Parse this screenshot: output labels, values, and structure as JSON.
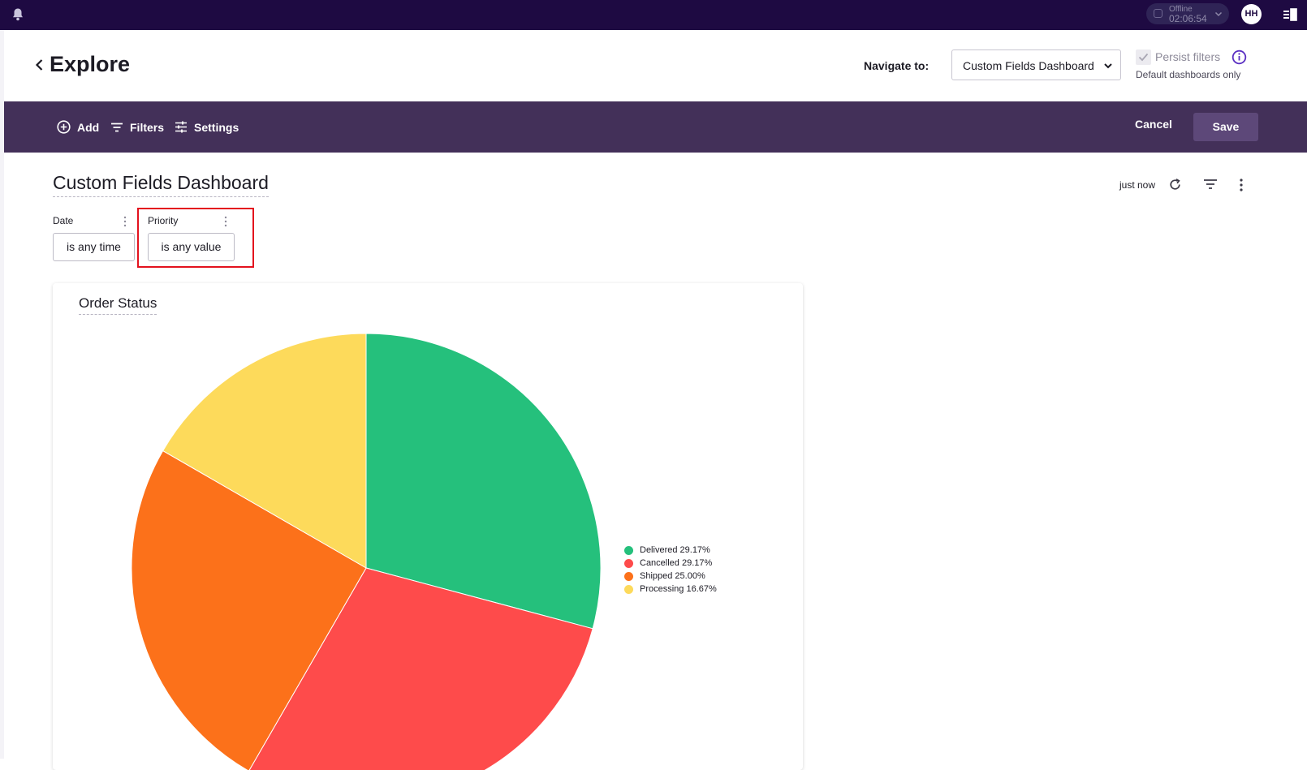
{
  "topbar": {
    "status": {
      "label": "Offline",
      "time": "02:06:54"
    },
    "avatar_initials": "HH",
    "icons": [
      "bell-icon",
      "chevron-down-icon",
      "panel-icon"
    ]
  },
  "header": {
    "title": "Explore",
    "navigate_label": "Navigate to:",
    "navigate_value": "Custom Fields Dashboard",
    "persist_label": "Persist filters",
    "persist_sub": "Default dashboards only"
  },
  "toolbar": {
    "add_label": "Add",
    "filters_label": "Filters",
    "settings_label": "Settings",
    "cancel_label": "Cancel",
    "save_label": "Save"
  },
  "dashboard": {
    "title": "Custom Fields Dashboard",
    "updated": "just now",
    "filters": [
      {
        "label": "Date",
        "value": "is any time"
      },
      {
        "label": "Priority",
        "value": "is any value"
      }
    ]
  },
  "colors": {
    "topbar": "#1e0a42",
    "toolbar": "#433059",
    "highlight": "#e3121e"
  },
  "chart_data": {
    "type": "pie",
    "title": "Order Status",
    "slices": [
      {
        "name": "Delivered",
        "value": 29.17,
        "label": "Delivered 29.17%",
        "color": "#25c07c"
      },
      {
        "name": "Cancelled",
        "value": 29.17,
        "label": "Cancelled 29.17%",
        "color": "#fe4b4b"
      },
      {
        "name": "Shipped",
        "value": 25.0,
        "label": "Shipped 25.00%",
        "color": "#fc711a"
      },
      {
        "name": "Processing",
        "value": 16.67,
        "label": "Processing 16.67%",
        "color": "#fdda5b"
      }
    ],
    "legend": "right"
  }
}
